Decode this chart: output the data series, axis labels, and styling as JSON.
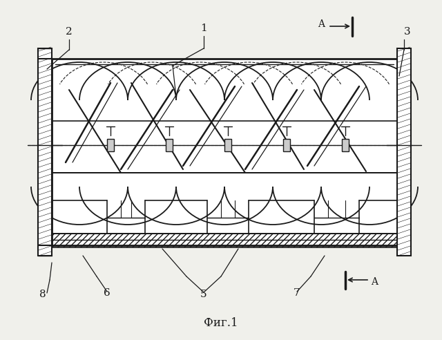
{
  "title": "Фиг.1",
  "bg_color": "#f5f5f0",
  "line_color": "#1a1a1a",
  "fig_width": 6.4,
  "fig_height": 4.92,
  "dpi": 100
}
